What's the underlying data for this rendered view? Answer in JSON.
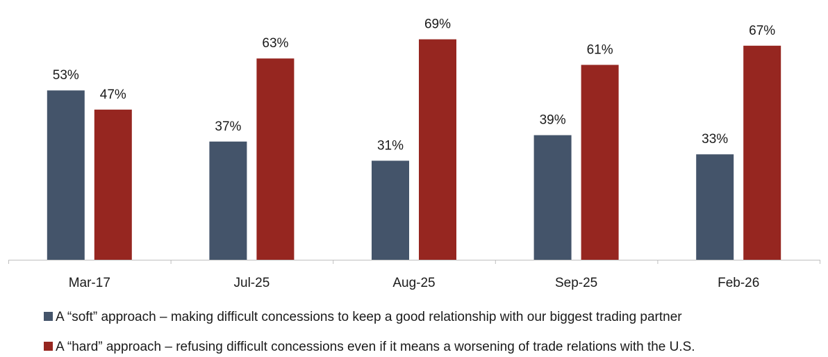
{
  "chart_data": {
    "type": "bar",
    "categories": [
      "Mar-17",
      "Jul-25",
      "Aug-25",
      "Sep-25",
      "Feb-26"
    ],
    "series": [
      {
        "name": "A “soft” approach – making difficult concessions to keep a good relationship with our biggest trading partner",
        "values": [
          53,
          37,
          31,
          39,
          33
        ],
        "color": "#44546a"
      },
      {
        "name": "A “hard” approach – refusing difficult concessions even if it means a worsening of trade relations with the U.S.",
        "values": [
          47,
          63,
          69,
          61,
          67
        ],
        "color": "#962620"
      }
    ],
    "value_suffix": "%",
    "ylim": [
      0,
      75
    ],
    "grid": false,
    "legend_position": "bottom",
    "title": "",
    "xlabel": "",
    "ylabel": ""
  }
}
